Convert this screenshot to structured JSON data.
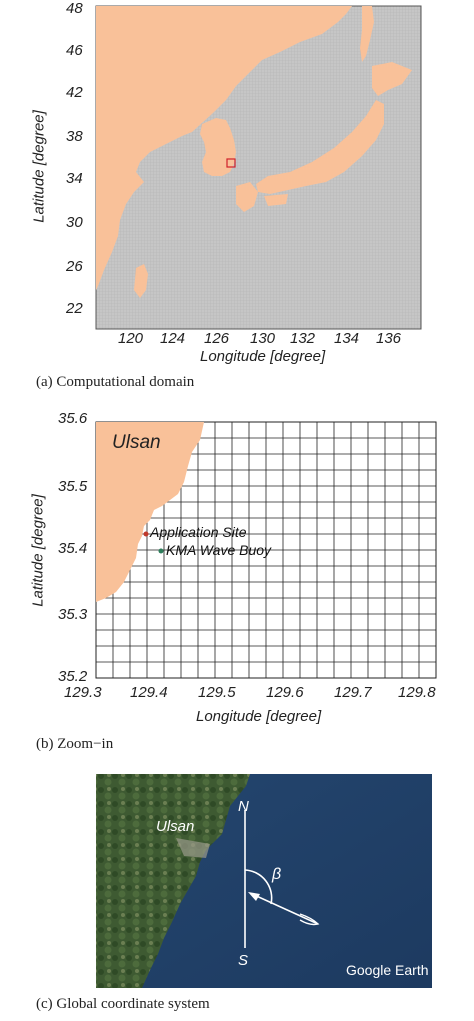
{
  "panel_a": {
    "y_ticks": [
      "48",
      "46",
      "42",
      "38",
      "34",
      "30",
      "26",
      "22"
    ],
    "x_ticks": [
      "120",
      "124",
      "126",
      "130",
      "132",
      "134",
      "136"
    ],
    "ylabel": "Latitude [degree]",
    "xlabel": "Longitude [degree]",
    "caption": "(a) Computational domain"
  },
  "panel_b": {
    "y_ticks": [
      "35.6",
      "35.5",
      "35.4",
      "35.3",
      "35.2"
    ],
    "x_ticks": [
      "129.3",
      "129.4",
      "129.5",
      "129.6",
      "129.7",
      "129.8"
    ],
    "ylabel": "Latitude [degree]",
    "xlabel": "Longitude [degree]",
    "place_label": "Ulsan",
    "application_site": "Application Site",
    "buoy": "KMA Wave Buoy",
    "caption": "(b) Zoom−in"
  },
  "panel_c": {
    "place_label": "Ulsan",
    "north": "N",
    "south": "S",
    "angle": "β",
    "watermark": "Google Earth",
    "caption": "(c) Global coordinate system"
  },
  "colors": {
    "land": "#f9c199",
    "sea_grid": "#c4c4c4",
    "site_marker": "#c0392b",
    "buoy_marker": "#2e7d5b",
    "domain_box": "#d0202a"
  }
}
